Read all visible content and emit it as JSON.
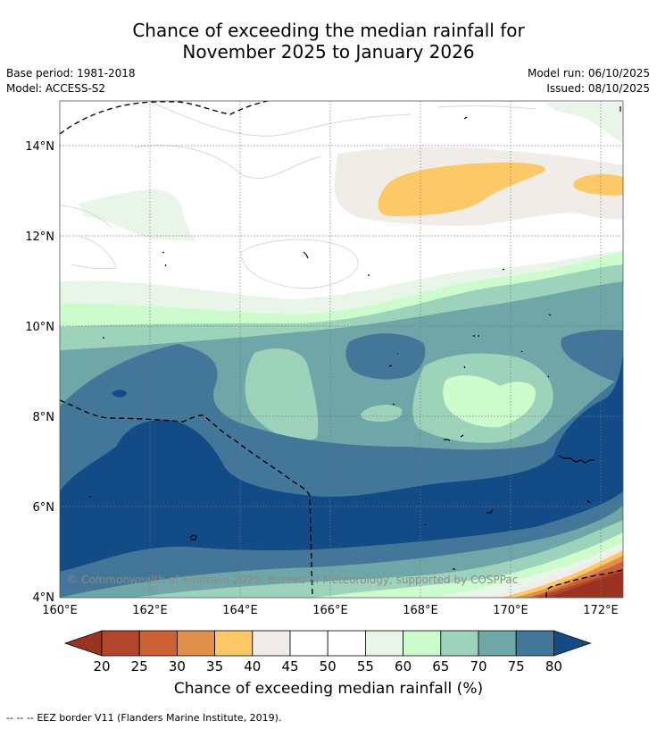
{
  "title": {
    "line1": "Chance of exceeding the median rainfall for",
    "line2": "November 2025 to January 2026"
  },
  "meta": {
    "base_period": "Base period: 1981-2018",
    "model": "Model: ACCESS-S2",
    "model_run": "Model run: 06/10/2025",
    "issued": "Issued: 08/10/2025"
  },
  "map": {
    "lat_labels": [
      "14°N",
      "12°N",
      "10°N",
      "8°N",
      "6°N",
      "4°N"
    ],
    "lon_labels": [
      "160°E",
      "162°E",
      "164°E",
      "166°E",
      "168°E",
      "170°E",
      "172°E"
    ],
    "copyright": "© Commonwealth of Australia 2025, Bureau of Meteorology, supported by COSPPac"
  },
  "colorbar": {
    "ticks": [
      "20",
      "25",
      "30",
      "35",
      "40",
      "45",
      "50",
      "55",
      "60",
      "65",
      "70",
      "75",
      "80"
    ],
    "colors": [
      "#9b3322",
      "#b2462a",
      "#cd6133",
      "#e0904a",
      "#fdc966",
      "#f0ece8",
      "#ffffff",
      "#ffffff",
      "#e8f5e8",
      "#ccfccc",
      "#9dd3bb",
      "#6fa7a8",
      "#43779a",
      "#134b86"
    ],
    "label": "Chance of exceeding median rainfall (%)"
  },
  "footer": {
    "legend_symbol": "-- -- --",
    "legend_text": "EEZ border V11 (Flanders Marine Institute, 2019)."
  }
}
